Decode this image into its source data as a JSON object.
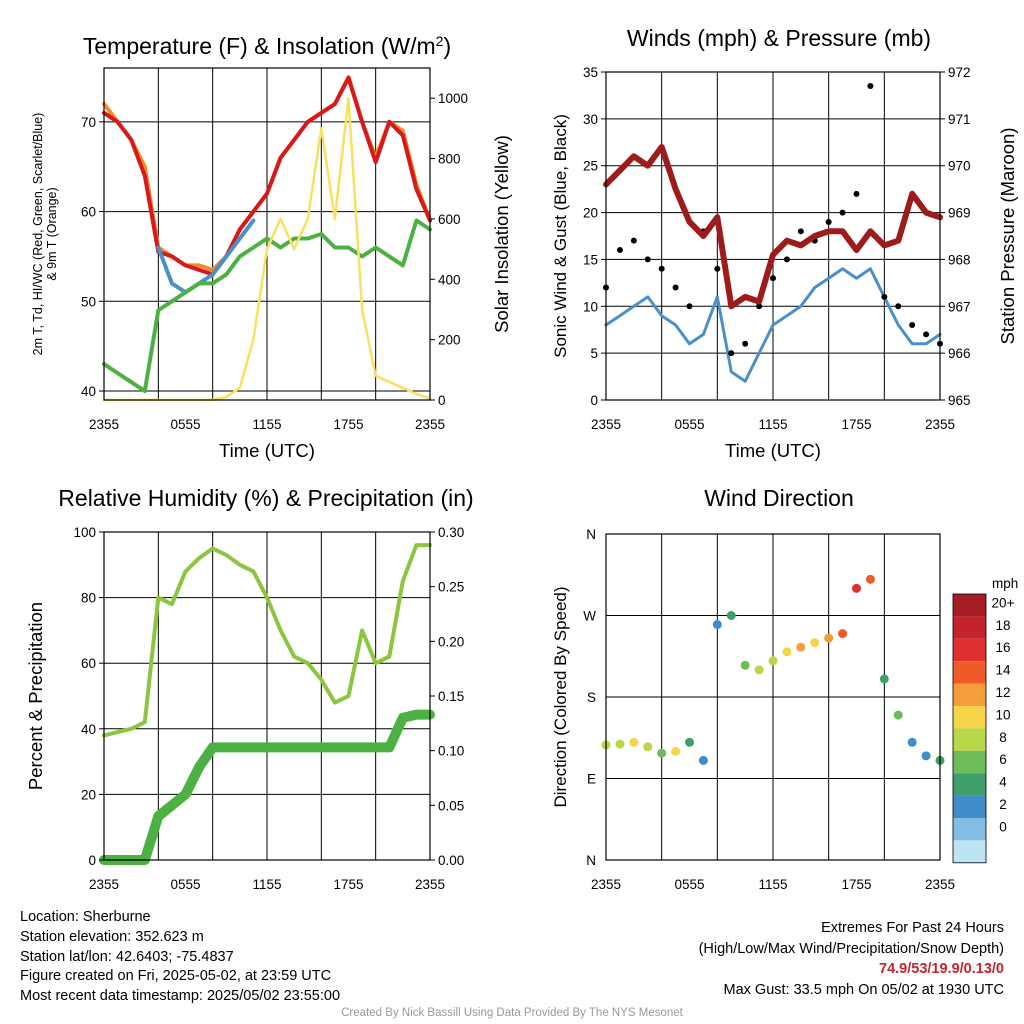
{
  "chart_data": [
    {
      "type": "line",
      "title": "Temperature (F) & Insolation (W/m²)",
      "title_main": "Temperature (F) & Insolation (W/m",
      "title_sup": "2",
      "title_end": ")",
      "xlabel": "Time (UTC)",
      "ylabel_line1": "2m T, Td, HI/WC (Red, Green, Scarlet/Blue)",
      "ylabel_line2": "& 9m T (Orange)",
      "ylabel_right": "Solar Insolation (Yellow)",
      "x_ticks": [
        "2355",
        "0555",
        "1155",
        "1755",
        "2355"
      ],
      "ylim": [
        39,
        76
      ],
      "y_ticks": [
        40,
        50,
        60,
        70
      ],
      "ylim_right": [
        0,
        1100
      ],
      "y_ticks_right": [
        0,
        200,
        400,
        600,
        800,
        1000
      ],
      "x": [
        0,
        1,
        2,
        3,
        4,
        5,
        6,
        7,
        8,
        9,
        10,
        11,
        12,
        13,
        14,
        15,
        16,
        17,
        18,
        19,
        20,
        21,
        22,
        23,
        24
      ],
      "series": [
        {
          "color": "#f48a2a",
          "values": [
            72,
            70,
            68,
            65,
            56,
            55,
            54,
            54,
            53.5,
            55,
            58,
            60,
            62,
            66,
            68,
            70,
            71,
            72,
            75,
            70,
            66,
            70,
            69,
            63,
            59
          ]
        },
        {
          "color": "#d7191c",
          "values": [
            71,
            70,
            68,
            64,
            55.5,
            55,
            54,
            53.5,
            53,
            55,
            58,
            60,
            62,
            66,
            68,
            70,
            71,
            72,
            74.9,
            70,
            65.5,
            70,
            68.5,
            62.5,
            59
          ]
        },
        {
          "color": "#4a90c8",
          "values": [
            null,
            null,
            null,
            null,
            56,
            52,
            51,
            52,
            53,
            55,
            57,
            59,
            null,
            null,
            null,
            null,
            null,
            null,
            null,
            null,
            null,
            null,
            null,
            null,
            null
          ]
        },
        {
          "color": "#4db043",
          "values": [
            43,
            42,
            41,
            40,
            49,
            50,
            51,
            52,
            52,
            53,
            55,
            56,
            57,
            56,
            57,
            57,
            57.5,
            56,
            56,
            55,
            56,
            55,
            54,
            59,
            58
          ]
        },
        {
          "color": "#f8e060",
          "axis": "right",
          "values": [
            0,
            0,
            0,
            0,
            0,
            0,
            0,
            0,
            0,
            10,
            40,
            200,
            500,
            600,
            500,
            600,
            900,
            600,
            1000,
            300,
            80,
            60,
            40,
            20,
            5
          ]
        }
      ]
    },
    {
      "type": "line",
      "title": "Winds (mph) & Pressure (mb)",
      "xlabel": "Time (UTC)",
      "ylabel": "Sonic Wind & Gust (Blue, Black)",
      "ylabel_right": "Station Pressure (Maroon)",
      "x_ticks": [
        "2355",
        "0555",
        "1155",
        "1755",
        "2355"
      ],
      "ylim": [
        0,
        35
      ],
      "y_ticks": [
        0,
        5,
        10,
        15,
        20,
        25,
        30,
        35
      ],
      "ylim_right": [
        965,
        972
      ],
      "y_ticks_right": [
        965,
        966,
        967,
        968,
        969,
        970,
        971,
        972
      ],
      "x": [
        0,
        1,
        2,
        3,
        4,
        5,
        6,
        7,
        8,
        9,
        10,
        11,
        12,
        13,
        14,
        15,
        16,
        17,
        18,
        19,
        20,
        21,
        22,
        23,
        24
      ],
      "series": [
        {
          "color": "#4a90c8",
          "values": [
            8,
            9,
            10,
            11,
            9,
            8,
            6,
            7,
            11,
            3,
            2,
            5,
            8,
            9,
            10,
            12,
            13,
            14,
            13,
            14,
            11,
            8,
            6,
            6,
            7
          ]
        },
        {
          "color": "#000000",
          "marker": "dot",
          "values": [
            12,
            16,
            17,
            15,
            14,
            12,
            10,
            18,
            14,
            5,
            6,
            10,
            13,
            15,
            18,
            17,
            19,
            20,
            22,
            33.5,
            11,
            10,
            8,
            7,
            6
          ]
        },
        {
          "color": "#9e1b1b",
          "axis": "right",
          "values": [
            969.6,
            969.9,
            970.2,
            970.0,
            970.4,
            969.5,
            968.8,
            968.5,
            968.9,
            967.0,
            967.2,
            967.1,
            968.1,
            968.4,
            968.3,
            968.5,
            968.6,
            968.6,
            968.2,
            968.6,
            968.3,
            968.4,
            969.4,
            969.0,
            968.9
          ]
        }
      ]
    },
    {
      "type": "line",
      "title": "Relative Humidity (%) & Precipitation (in)",
      "ylabel": "Percent & Precipitation",
      "x_ticks": [
        "2355",
        "0555",
        "1155",
        "1755",
        "2355"
      ],
      "ylim": [
        0,
        100
      ],
      "y_ticks": [
        0,
        20,
        40,
        60,
        80,
        100
      ],
      "ylim_right": [
        0,
        0.3
      ],
      "y_ticks_right": [
        "0.00",
        "0.05",
        "0.10",
        "0.15",
        "0.20",
        "0.25",
        "0.30"
      ],
      "x": [
        0,
        1,
        2,
        3,
        4,
        5,
        6,
        7,
        8,
        9,
        10,
        11,
        12,
        13,
        14,
        15,
        16,
        17,
        18,
        19,
        20,
        21,
        22,
        23,
        24
      ],
      "series": [
        {
          "color": "#8cc63f",
          "values": [
            38,
            39,
            40,
            42,
            80,
            78,
            88,
            92,
            95,
            93,
            90,
            88,
            80,
            70,
            62,
            60,
            55,
            48,
            50,
            70,
            60,
            62,
            85,
            96,
            96
          ]
        },
        {
          "color": "#4db043",
          "axis": "right",
          "values": [
            0,
            0,
            0,
            0,
            0.04,
            0.05,
            0.06,
            0.085,
            0.103,
            0.103,
            0.103,
            0.103,
            0.103,
            0.103,
            0.103,
            0.103,
            0.103,
            0.103,
            0.103,
            0.103,
            0.103,
            0.103,
            0.13,
            0.133,
            0.133
          ]
        }
      ]
    },
    {
      "type": "scatter",
      "title": "Wind Direction",
      "ylabel": "Direction (Colored By Speed)",
      "x_ticks": [
        "2355",
        "0555",
        "1155",
        "1755",
        "2355"
      ],
      "y_ticks": [
        "N",
        "E",
        "S",
        "W",
        "N"
      ],
      "y_tick_values": [
        0,
        90,
        180,
        270,
        360
      ],
      "colorbar_title": "mph",
      "colorbar_labels": [
        "20+",
        "18",
        "16",
        "14",
        "12",
        "10",
        "8",
        "6",
        "4",
        "2",
        "0"
      ],
      "colorbar_colors": [
        "#a51c24",
        "#c5232b",
        "#e02f2f",
        "#ef5a29",
        "#f59c3d",
        "#f7d54a",
        "#b8d84a",
        "#6cbc5a",
        "#3e9f6a",
        "#3f8cc8",
        "#84bde3",
        "#bde4f5"
      ],
      "x": [
        0,
        1,
        2,
        3,
        4,
        5,
        6,
        7,
        8,
        9,
        10,
        11,
        12,
        13,
        14,
        15,
        16,
        17,
        18,
        19,
        20,
        21,
        22,
        23,
        24
      ],
      "values": [
        127,
        128,
        130,
        125,
        118,
        120,
        130,
        110,
        260,
        270,
        215,
        210,
        220,
        230,
        235,
        240,
        245,
        250,
        300,
        310,
        200,
        160,
        130,
        115,
        110
      ],
      "speeds": [
        9,
        10,
        11,
        9,
        8,
        12,
        6,
        3,
        4,
        5,
        7,
        9,
        10,
        12,
        14,
        12,
        13,
        15,
        18,
        16,
        6,
        7,
        4,
        3,
        5
      ]
    }
  ],
  "footer": {
    "location": "Location: Sherburne",
    "elevation": "Station elevation: 352.623 m",
    "latlon": "Station lat/lon: 42.6403; -75.4837",
    "created": "Figure created on Fri, 2025-05-02, at 23:59 UTC",
    "recent": "Most recent data timestamp: 2025/05/02 23:55:00",
    "extremes_title": "Extremes For Past 24 Hours",
    "extremes_sub": "(High/Low/Max Wind/Precipitation/Snow Depth)",
    "extremes_values": "74.9/53/19.9/0.13/0",
    "max_gust": "Max Gust: 33.5 mph On 05/02 at 1930 UTC",
    "credit": "Created By Nick Bassill Using Data Provided By The NYS Mesonet"
  }
}
